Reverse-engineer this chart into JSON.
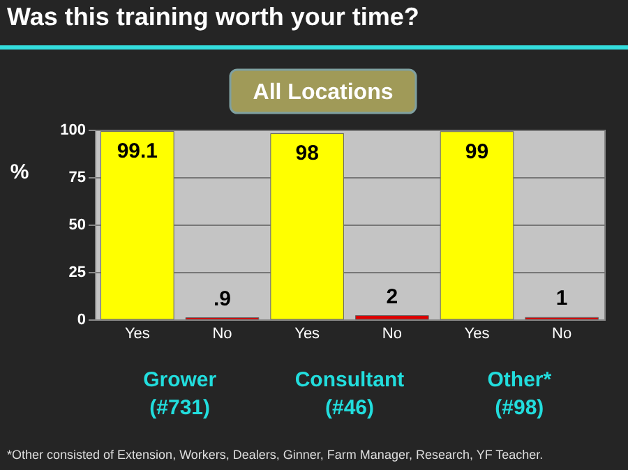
{
  "chart_data": {
    "type": "bar",
    "title": "Was this training worth your time?",
    "subtitle": "All Locations",
    "ylabel": "%",
    "categories": [
      "Yes",
      "No",
      "Yes",
      "No",
      "Yes",
      "No"
    ],
    "values": [
      99.1,
      0.9,
      98,
      2,
      99,
      1
    ],
    "colors": [
      "#ffff00",
      "#dd0000",
      "#ffff00",
      "#dd0000",
      "#ffff00",
      "#dd0000"
    ],
    "value_labels": [
      "99.1",
      ".9",
      "98",
      "2",
      "99",
      "1"
    ],
    "ylim": [
      0,
      100
    ],
    "yticks": [
      0,
      25,
      50,
      75,
      100
    ],
    "grid": "y",
    "annotations": [
      "Grower\n(#731)",
      "Consultant\n(#46)",
      "Other*\n(#98)",
      "*Other consisted of Extension,  Workers, Dealers, Ginner, Farm Manager, Research, YF Teacher."
    ]
  }
}
